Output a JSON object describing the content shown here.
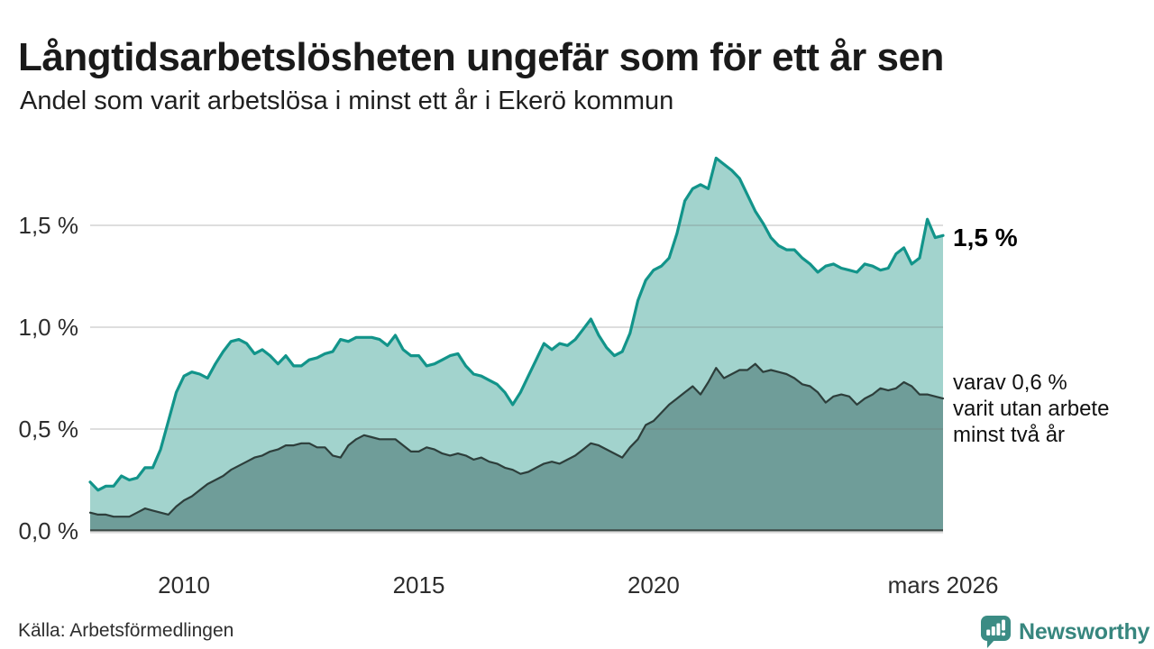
{
  "header": {
    "title": "Långtidsarbetslösheten ungefär som för ett år sen",
    "subtitle": "Andel som varit arbetslösa i minst ett år i Ekerö kommun"
  },
  "chart_data": {
    "type": "area",
    "title": "Långtidsarbetslösheten ungefär som för ett år sen",
    "subtitle": "Andel som varit arbetslösa i minst ett år i Ekerö kommun",
    "xlabel": "",
    "ylabel": "",
    "unit": "%",
    "x_start": 2008.0,
    "x_end": 2026.1667,
    "x_step_years": 0.1667,
    "ylim": [
      0,
      1.95
    ],
    "grid": true,
    "legend_position": "end-of-line-labels",
    "x_axis_ticks": [
      {
        "label": "2010",
        "year": 2010
      },
      {
        "label": "2015",
        "year": 2015
      },
      {
        "label": "2020",
        "year": 2020
      },
      {
        "label": "mars 2026",
        "year": 2026.1667
      }
    ],
    "y_axis_ticks": [
      {
        "label": "0,0 %",
        "value": 0
      },
      {
        "label": "0,5 %",
        "value": 0.5
      },
      {
        "label": "1,0 %",
        "value": 1.0
      },
      {
        "label": "1,5 %",
        "value": 1.5
      }
    ],
    "series": [
      {
        "name": "Arbetslösa minst ett år",
        "color": "#12948a",
        "fill": "#a2d3cd",
        "line_width": 3.2,
        "end_value": 1.5,
        "values": [
          0.24,
          0.2,
          0.22,
          0.22,
          0.27,
          0.25,
          0.26,
          0.31,
          0.31,
          0.4,
          0.54,
          0.68,
          0.76,
          0.78,
          0.77,
          0.75,
          0.82,
          0.88,
          0.93,
          0.94,
          0.92,
          0.87,
          0.89,
          0.86,
          0.82,
          0.86,
          0.81,
          0.81,
          0.84,
          0.85,
          0.87,
          0.88,
          0.94,
          0.93,
          0.95,
          0.95,
          0.95,
          0.94,
          0.91,
          0.96,
          0.89,
          0.86,
          0.86,
          0.81,
          0.82,
          0.84,
          0.86,
          0.87,
          0.81,
          0.77,
          0.76,
          0.74,
          0.72,
          0.68,
          0.62,
          0.68,
          0.76,
          0.84,
          0.92,
          0.89,
          0.92,
          0.91,
          0.94,
          0.99,
          1.04,
          0.96,
          0.9,
          0.86,
          0.88,
          0.97,
          1.13,
          1.23,
          1.28,
          1.3,
          1.34,
          1.46,
          1.62,
          1.68,
          1.7,
          1.68,
          1.83,
          1.8,
          1.77,
          1.73,
          1.65,
          1.57,
          1.51,
          1.44,
          1.4,
          1.38,
          1.38,
          1.34,
          1.31,
          1.27,
          1.3,
          1.31,
          1.29,
          1.28,
          1.27,
          1.31,
          1.3,
          1.28,
          1.29,
          1.36,
          1.39,
          1.31,
          1.34,
          1.53,
          1.44,
          1.45
        ]
      },
      {
        "name": "varav utan arbete minst två år",
        "color": "#2d3e3b",
        "fill": "#6f9d99",
        "line_width": 2.2,
        "end_value": 0.6,
        "values": [
          0.09,
          0.08,
          0.08,
          0.07,
          0.07,
          0.07,
          0.09,
          0.11,
          0.1,
          0.09,
          0.08,
          0.12,
          0.15,
          0.17,
          0.2,
          0.23,
          0.25,
          0.27,
          0.3,
          0.32,
          0.34,
          0.36,
          0.37,
          0.39,
          0.4,
          0.42,
          0.42,
          0.43,
          0.43,
          0.41,
          0.41,
          0.37,
          0.36,
          0.42,
          0.45,
          0.47,
          0.46,
          0.45,
          0.45,
          0.45,
          0.42,
          0.39,
          0.39,
          0.41,
          0.4,
          0.38,
          0.37,
          0.38,
          0.37,
          0.35,
          0.36,
          0.34,
          0.33,
          0.31,
          0.3,
          0.28,
          0.29,
          0.31,
          0.33,
          0.34,
          0.33,
          0.35,
          0.37,
          0.4,
          0.43,
          0.42,
          0.4,
          0.38,
          0.36,
          0.41,
          0.45,
          0.52,
          0.54,
          0.58,
          0.62,
          0.65,
          0.68,
          0.71,
          0.67,
          0.73,
          0.8,
          0.75,
          0.77,
          0.79,
          0.79,
          0.82,
          0.78,
          0.79,
          0.78,
          0.77,
          0.75,
          0.72,
          0.71,
          0.68,
          0.63,
          0.66,
          0.67,
          0.66,
          0.62,
          0.65,
          0.67,
          0.7,
          0.69,
          0.7,
          0.73,
          0.71,
          0.67,
          0.67,
          0.66,
          0.65
        ]
      }
    ]
  },
  "annotations": {
    "primary": "1,5 %",
    "secondary": [
      "varav 0,6 %",
      "varit utan arbete",
      "minst två år"
    ]
  },
  "footer": {
    "source": "Källa: Arbetsförmedlingen",
    "logo_text": "Newsworthy"
  },
  "colors": {
    "gridline": "#d8d8d8",
    "axis_line": "#3f4a47",
    "axis_sub_line": "#cfcfcf",
    "tick_text": "#2d2d2d",
    "title_text": "#1a1a1a",
    "brand_teal": "#3b8c84"
  }
}
